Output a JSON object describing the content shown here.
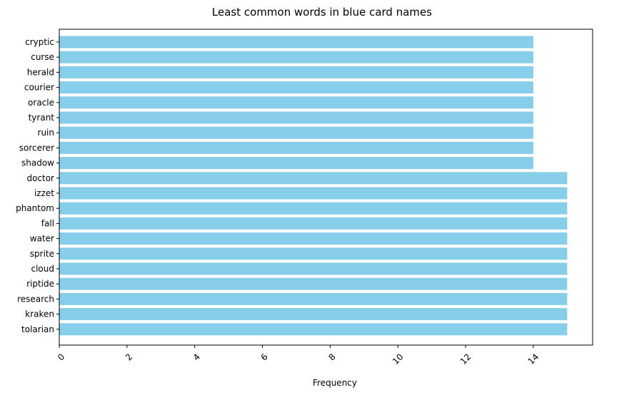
{
  "chart_data": {
    "type": "bar",
    "orientation": "horizontal",
    "title": "Least common words in blue card names",
    "xlabel": "Frequency",
    "ylabel": "",
    "categories": [
      "cryptic",
      "curse",
      "herald",
      "courier",
      "oracle",
      "tyrant",
      "ruin",
      "sorcerer",
      "shadow",
      "doctor",
      "izzet",
      "phantom",
      "fall",
      "water",
      "sprite",
      "cloud",
      "riptide",
      "research",
      "kraken",
      "tolarian"
    ],
    "values": [
      14,
      14,
      14,
      14,
      14,
      14,
      14,
      14,
      14,
      15,
      15,
      15,
      15,
      15,
      15,
      15,
      15,
      15,
      15,
      15
    ],
    "xlim": [
      0,
      15.75
    ],
    "xticks": [
      0,
      2,
      4,
      6,
      8,
      10,
      12,
      14
    ],
    "xtick_labels": [
      "0",
      "2",
      "4",
      "6",
      "8",
      "10",
      "12",
      "14"
    ],
    "xtick_rotation": 45,
    "grid": false,
    "legend": "none",
    "bar_color": "#87CEEB"
  }
}
